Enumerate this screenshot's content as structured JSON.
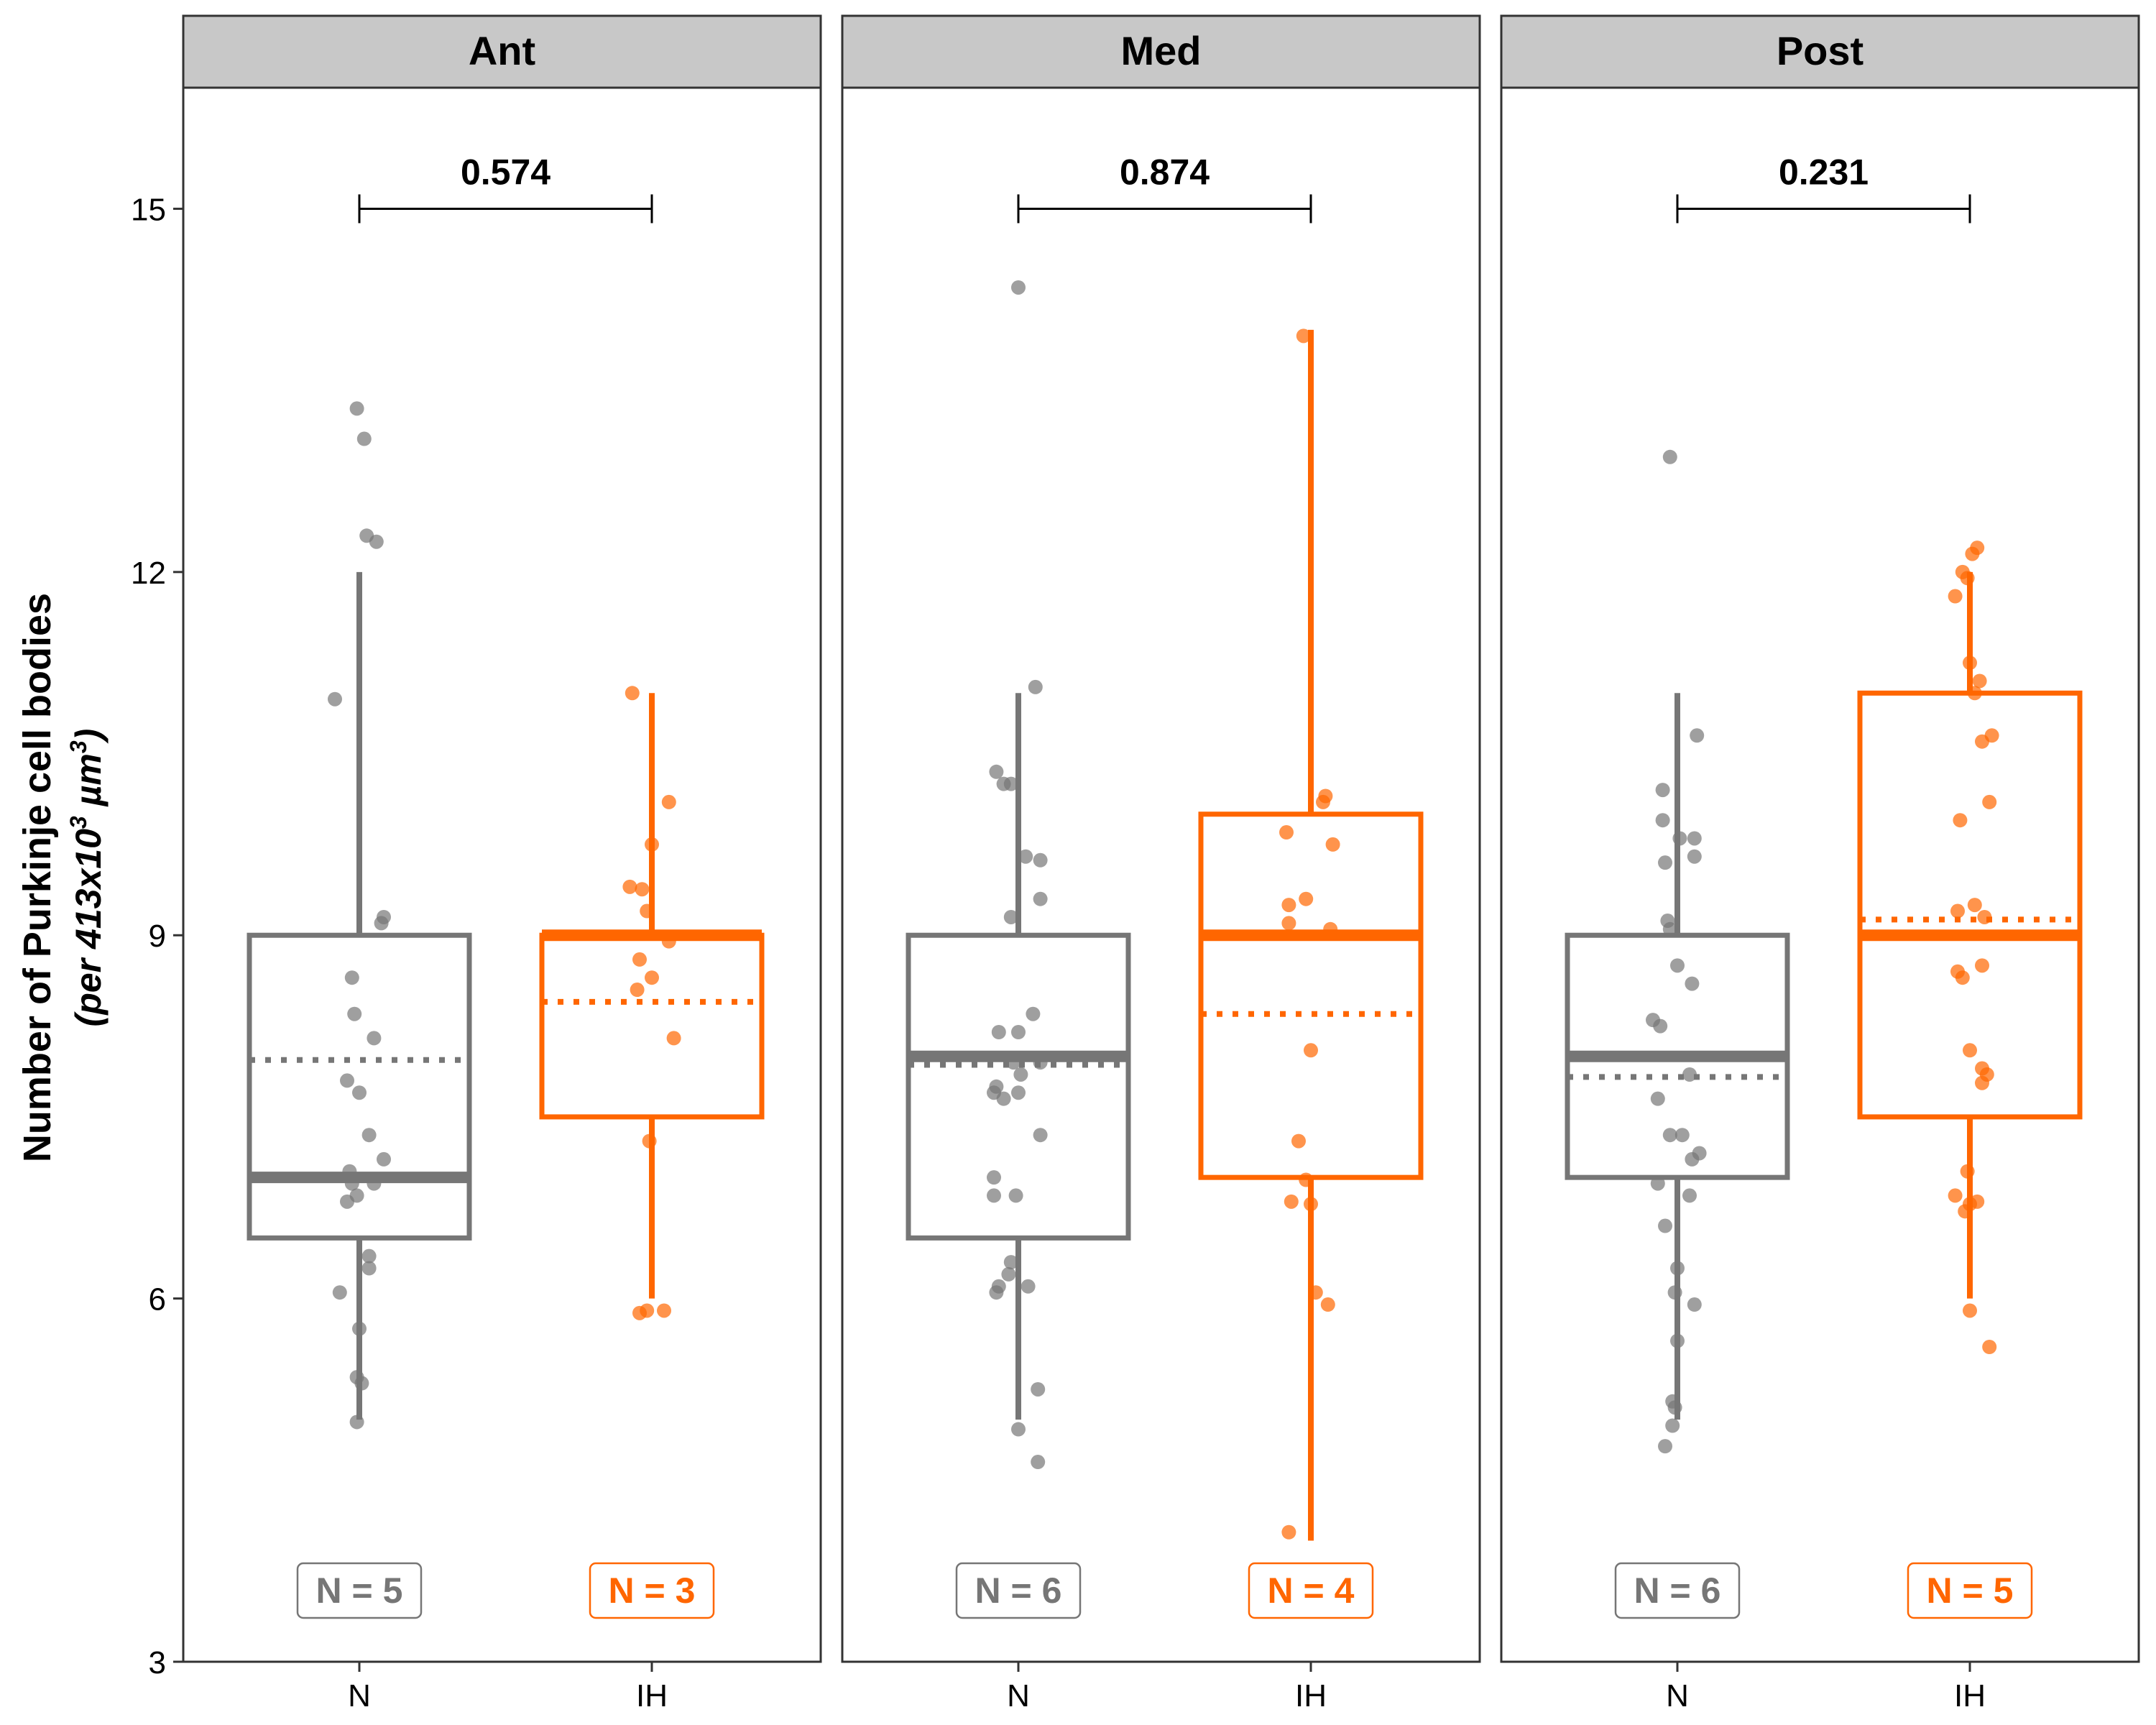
{
  "chart_data": {
    "type": "boxplot",
    "ylabel": "Number of Purkinje cell bodies",
    "ylabel_sub": {
      "prefix": "(per 413x10",
      "exp1": "3",
      "mid": " µm",
      "exp2": "3",
      "suffix": ")"
    },
    "ylim": [
      3,
      16
    ],
    "yticks": [
      "15",
      "12",
      "9",
      "6",
      "3"
    ],
    "categories": [
      "N",
      "IH"
    ],
    "colors": {
      "N": "#767676",
      "IH": "#ff6600",
      "strip": "#c8c8c8"
    },
    "panels": [
      {
        "name": "Ant",
        "p_value": "0.574",
        "groups": [
          {
            "key": "N",
            "n_label": "N = 5",
            "whisker_low": 5.0,
            "q1": 6.5,
            "median": 7.0,
            "q3": 9.0,
            "whisker_high": 12.0,
            "mean": 7.97,
            "points": [
              {
                "x": -0.01,
                "y": 13.35
              },
              {
                "x": 0.02,
                "y": 13.1
              },
              {
                "x": 0.03,
                "y": 12.3
              },
              {
                "x": 0.07,
                "y": 12.25
              },
              {
                "x": -0.1,
                "y": 10.95
              },
              {
                "x": 0.1,
                "y": 9.15
              },
              {
                "x": 0.09,
                "y": 9.1
              },
              {
                "x": -0.03,
                "y": 8.65
              },
              {
                "x": -0.02,
                "y": 8.35
              },
              {
                "x": 0.06,
                "y": 8.15
              },
              {
                "x": -0.05,
                "y": 7.8
              },
              {
                "x": 0.0,
                "y": 7.7
              },
              {
                "x": 0.04,
                "y": 7.35
              },
              {
                "x": 0.1,
                "y": 7.15
              },
              {
                "x": -0.04,
                "y": 7.05
              },
              {
                "x": -0.03,
                "y": 6.95
              },
              {
                "x": 0.06,
                "y": 6.95
              },
              {
                "x": -0.01,
                "y": 6.85
              },
              {
                "x": -0.05,
                "y": 6.8
              },
              {
                "x": 0.04,
                "y": 6.35
              },
              {
                "x": 0.04,
                "y": 6.25
              },
              {
                "x": -0.08,
                "y": 6.05
              },
              {
                "x": 0.0,
                "y": 5.75
              },
              {
                "x": -0.01,
                "y": 5.35
              },
              {
                "x": 0.01,
                "y": 5.3
              },
              {
                "x": -0.01,
                "y": 4.98
              }
            ]
          },
          {
            "key": "IH",
            "n_label": "N = 3",
            "whisker_low": 6.0,
            "q1": 7.5,
            "median": 9.0,
            "q3": 9.0,
            "whisker_high": 11.0,
            "mean": 8.45,
            "points": [
              {
                "x": -0.08,
                "y": 11.0
              },
              {
                "x": 0.07,
                "y": 10.1
              },
              {
                "x": 0.0,
                "y": 9.75
              },
              {
                "x": -0.09,
                "y": 9.4
              },
              {
                "x": -0.04,
                "y": 9.38
              },
              {
                "x": -0.02,
                "y": 9.2
              },
              {
                "x": 0.07,
                "y": 8.95
              },
              {
                "x": -0.05,
                "y": 8.8
              },
              {
                "x": 0.0,
                "y": 8.65
              },
              {
                "x": -0.06,
                "y": 8.55
              },
              {
                "x": 0.09,
                "y": 8.15
              },
              {
                "x": -0.01,
                "y": 7.3
              },
              {
                "x": -0.05,
                "y": 5.88
              },
              {
                "x": -0.02,
                "y": 5.9
              },
              {
                "x": 0.05,
                "y": 5.9
              }
            ]
          }
        ]
      },
      {
        "name": "Med",
        "p_value": "0.874",
        "groups": [
          {
            "key": "N",
            "n_label": "N = 6",
            "whisker_low": 5.0,
            "q1": 6.5,
            "median": 8.0,
            "q3": 9.0,
            "whisker_high": 11.0,
            "mean": 7.93,
            "points": [
              {
                "x": 0.0,
                "y": 14.35
              },
              {
                "x": 0.07,
                "y": 11.05
              },
              {
                "x": -0.09,
                "y": 10.35
              },
              {
                "x": -0.06,
                "y": 10.25
              },
              {
                "x": -0.03,
                "y": 10.25
              },
              {
                "x": 0.03,
                "y": 9.65
              },
              {
                "x": 0.09,
                "y": 9.62
              },
              {
                "x": 0.09,
                "y": 9.3
              },
              {
                "x": -0.03,
                "y": 9.15
              },
              {
                "x": 0.06,
                "y": 8.35
              },
              {
                "x": -0.08,
                "y": 8.2
              },
              {
                "x": 0.0,
                "y": 8.2
              },
              {
                "x": -0.02,
                "y": 7.95
              },
              {
                "x": 0.09,
                "y": 7.95
              },
              {
                "x": 0.01,
                "y": 7.85
              },
              {
                "x": -0.09,
                "y": 7.75
              },
              {
                "x": -0.06,
                "y": 7.65
              },
              {
                "x": -0.1,
                "y": 7.7
              },
              {
                "x": 0.0,
                "y": 7.7
              },
              {
                "x": 0.09,
                "y": 7.35
              },
              {
                "x": -0.1,
                "y": 7.0
              },
              {
                "x": -0.1,
                "y": 6.85
              },
              {
                "x": -0.01,
                "y": 6.85
              },
              {
                "x": -0.03,
                "y": 6.3
              },
              {
                "x": -0.04,
                "y": 6.2
              },
              {
                "x": -0.08,
                "y": 6.1
              },
              {
                "x": -0.09,
                "y": 6.05
              },
              {
                "x": 0.04,
                "y": 6.1
              },
              {
                "x": 0.08,
                "y": 5.25
              },
              {
                "x": 0.0,
                "y": 4.92
              },
              {
                "x": 0.08,
                "y": 4.65
              }
            ]
          },
          {
            "key": "IH",
            "n_label": "N = 4",
            "whisker_low": 4.0,
            "q1": 7.0,
            "median": 9.0,
            "q3": 10.0,
            "whisker_high": 14.0,
            "mean": 8.35,
            "points": [
              {
                "x": -0.03,
                "y": 13.95
              },
              {
                "x": 0.06,
                "y": 10.15
              },
              {
                "x": 0.05,
                "y": 10.1
              },
              {
                "x": -0.1,
                "y": 9.85
              },
              {
                "x": 0.09,
                "y": 9.75
              },
              {
                "x": -0.02,
                "y": 9.3
              },
              {
                "x": -0.09,
                "y": 9.25
              },
              {
                "x": -0.09,
                "y": 9.1
              },
              {
                "x": 0.08,
                "y": 9.05
              },
              {
                "x": 0.0,
                "y": 8.05
              },
              {
                "x": -0.05,
                "y": 7.3
              },
              {
                "x": -0.02,
                "y": 6.98
              },
              {
                "x": -0.08,
                "y": 6.8
              },
              {
                "x": 0.0,
                "y": 6.78
              },
              {
                "x": 0.02,
                "y": 6.05
              },
              {
                "x": 0.07,
                "y": 5.95
              },
              {
                "x": -0.09,
                "y": 4.07
              }
            ]
          }
        ]
      },
      {
        "name": "Post",
        "p_value": "0.231",
        "groups": [
          {
            "key": "N",
            "n_label": "N = 6",
            "whisker_low": 5.0,
            "q1": 7.0,
            "median": 8.0,
            "q3": 9.0,
            "whisker_high": 11.0,
            "mean": 7.83,
            "points": [
              {
                "x": -0.03,
                "y": 12.95
              },
              {
                "x": 0.08,
                "y": 10.65
              },
              {
                "x": -0.06,
                "y": 10.2
              },
              {
                "x": -0.06,
                "y": 9.95
              },
              {
                "x": 0.01,
                "y": 9.8
              },
              {
                "x": 0.07,
                "y": 9.8
              },
              {
                "x": 0.07,
                "y": 9.65
              },
              {
                "x": -0.05,
                "y": 9.6
              },
              {
                "x": -0.04,
                "y": 9.12
              },
              {
                "x": -0.03,
                "y": 9.05
              },
              {
                "x": 0.0,
                "y": 8.75
              },
              {
                "x": 0.06,
                "y": 8.6
              },
              {
                "x": -0.1,
                "y": 8.3
              },
              {
                "x": -0.07,
                "y": 8.25
              },
              {
                "x": 0.05,
                "y": 7.85
              },
              {
                "x": -0.08,
                "y": 7.65
              },
              {
                "x": -0.03,
                "y": 7.35
              },
              {
                "x": 0.02,
                "y": 7.35
              },
              {
                "x": 0.09,
                "y": 7.2
              },
              {
                "x": 0.06,
                "y": 7.15
              },
              {
                "x": -0.08,
                "y": 6.95
              },
              {
                "x": 0.05,
                "y": 6.85
              },
              {
                "x": -0.05,
                "y": 6.6
              },
              {
                "x": 0.0,
                "y": 6.25
              },
              {
                "x": -0.01,
                "y": 6.05
              },
              {
                "x": 0.07,
                "y": 5.95
              },
              {
                "x": 0.0,
                "y": 5.65
              },
              {
                "x": -0.02,
                "y": 5.15
              },
              {
                "x": -0.01,
                "y": 5.1
              },
              {
                "x": -0.02,
                "y": 4.95
              },
              {
                "x": -0.05,
                "y": 4.78
              }
            ]
          },
          {
            "key": "IH",
            "n_label": "N = 5",
            "whisker_low": 6.0,
            "q1": 7.5,
            "median": 9.0,
            "q3": 11.0,
            "whisker_high": 12.0,
            "mean": 9.13,
            "points": [
              {
                "x": 0.03,
                "y": 12.2
              },
              {
                "x": 0.01,
                "y": 12.15
              },
              {
                "x": -0.03,
                "y": 12.0
              },
              {
                "x": -0.01,
                "y": 11.95
              },
              {
                "x": -0.06,
                "y": 11.8
              },
              {
                "x": 0.0,
                "y": 11.25
              },
              {
                "x": 0.04,
                "y": 11.1
              },
              {
                "x": 0.02,
                "y": 11.0
              },
              {
                "x": 0.05,
                "y": 10.6
              },
              {
                "x": 0.09,
                "y": 10.65
              },
              {
                "x": 0.08,
                "y": 10.1
              },
              {
                "x": -0.04,
                "y": 9.95
              },
              {
                "x": 0.02,
                "y": 9.25
              },
              {
                "x": -0.05,
                "y": 9.2
              },
              {
                "x": 0.06,
                "y": 9.15
              },
              {
                "x": 0.05,
                "y": 8.75
              },
              {
                "x": -0.05,
                "y": 8.7
              },
              {
                "x": -0.03,
                "y": 8.65
              },
              {
                "x": 0.0,
                "y": 8.05
              },
              {
                "x": 0.05,
                "y": 7.9
              },
              {
                "x": 0.07,
                "y": 7.85
              },
              {
                "x": 0.05,
                "y": 7.78
              },
              {
                "x": -0.01,
                "y": 7.05
              },
              {
                "x": -0.06,
                "y": 6.85
              },
              {
                "x": 0.03,
                "y": 6.8
              },
              {
                "x": 0.0,
                "y": 6.78
              },
              {
                "x": -0.02,
                "y": 6.72
              },
              {
                "x": 0.0,
                "y": 5.9
              },
              {
                "x": 0.08,
                "y": 5.6
              }
            ]
          }
        ]
      }
    ]
  }
}
